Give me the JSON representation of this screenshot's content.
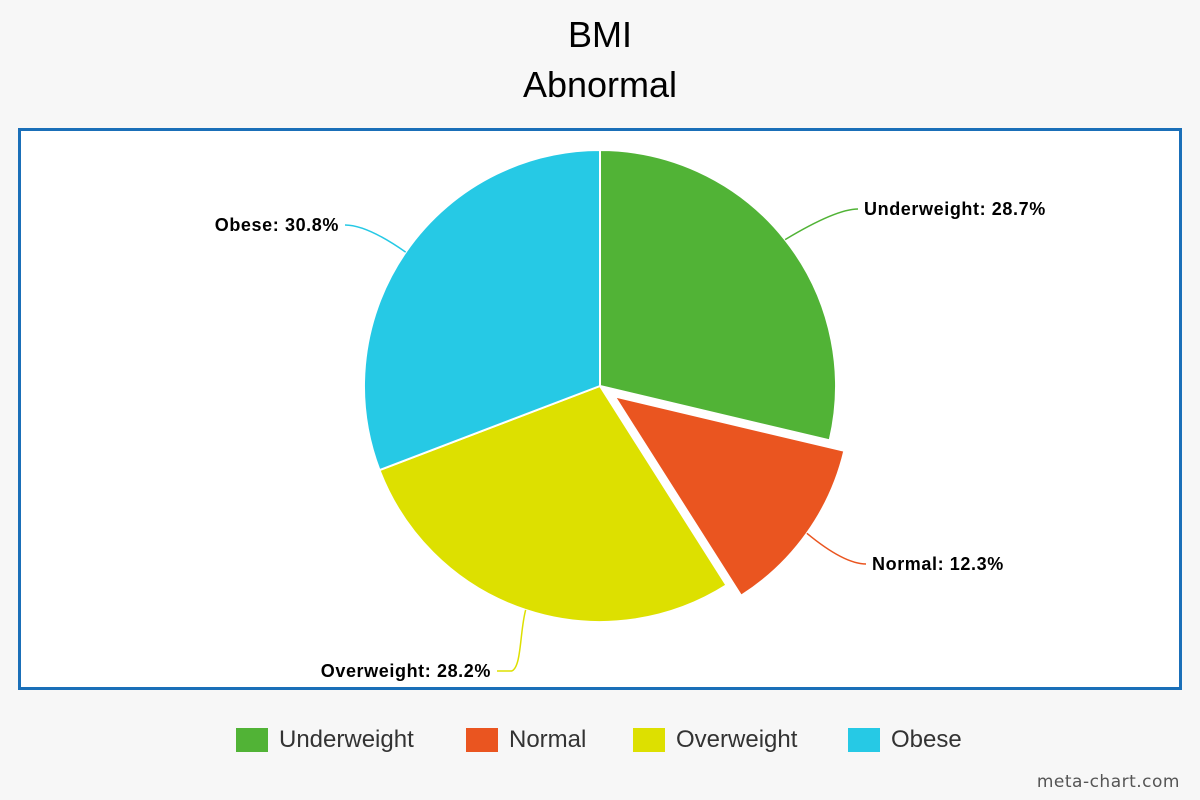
{
  "chart_data": {
    "type": "pie",
    "title": "BMI",
    "subtitle": "Abnormal",
    "slices": [
      {
        "name": "Underweight",
        "value": 28.7,
        "color": "#51b336",
        "label": "Underweight: 28.7%",
        "exploded": false
      },
      {
        "name": "Normal",
        "value": 12.3,
        "color": "#ea5520",
        "label": "Normal: 12.3%",
        "exploded": true
      },
      {
        "name": "Overweight",
        "value": 28.2,
        "color": "#dde000",
        "label": "Overweight: 28.2%",
        "exploded": false
      },
      {
        "name": "Obese",
        "value": 30.8,
        "color": "#26c9e5",
        "label": "Obese: 30.8%",
        "exploded": false
      }
    ],
    "legend": {
      "placement": "bottom",
      "entries": [
        "Underweight",
        "Normal",
        "Overweight",
        "Obese"
      ]
    }
  },
  "frame_color": "#1a6fb8",
  "watermark": "meta-chart.com"
}
